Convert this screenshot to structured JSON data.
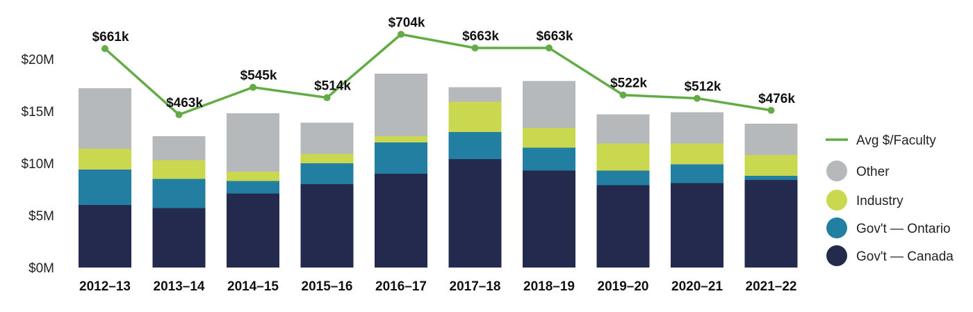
{
  "chart_data": {
    "type": "bar",
    "stacked": true,
    "categories": [
      "2012–13",
      "2013–14",
      "2014–15",
      "2015–16",
      "2016–17",
      "2017–18",
      "2018–19",
      "2019–20",
      "2020–21",
      "2021–22"
    ],
    "ylim": [
      0,
      20
    ],
    "yticks": [
      0,
      5,
      10,
      15,
      20
    ],
    "ytick_labels": [
      "$0M",
      "$5M",
      "$10M",
      "$15M",
      "$20M"
    ],
    "series": [
      {
        "name": "Gov't — Canada",
        "color": "#232a4d",
        "values": [
          6.0,
          5.7,
          7.1,
          8.0,
          9.0,
          10.4,
          9.3,
          7.9,
          8.1,
          8.4
        ]
      },
      {
        "name": "Gov't — Ontario",
        "color": "#237fa1",
        "values": [
          3.4,
          2.8,
          1.2,
          2.0,
          3.0,
          2.6,
          2.2,
          1.4,
          1.8,
          0.4
        ]
      },
      {
        "name": "Industry",
        "color": "#c9d84e",
        "values": [
          2.0,
          1.8,
          0.9,
          0.9,
          0.6,
          2.9,
          1.9,
          2.6,
          2.0,
          2.0
        ]
      },
      {
        "name": "Other",
        "color": "#b6b9bb",
        "values": [
          5.8,
          2.3,
          5.6,
          3.0,
          6.0,
          1.4,
          4.5,
          2.8,
          3.0,
          3.0
        ]
      }
    ],
    "line": {
      "name": "Avg $/Faculty",
      "color": "#62ab45",
      "values": [
        661,
        463,
        545,
        514,
        704,
        663,
        663,
        522,
        512,
        476
      ],
      "labels": [
        "$661k",
        "$463k",
        "$545k",
        "$514k",
        "$704k",
        "$663k",
        "$663k",
        "$522k",
        "$512k",
        "$476k"
      ]
    },
    "legend": {
      "placement": "right",
      "entries": [
        "Avg $/Faculty",
        "Other",
        "Industry",
        "Gov't — Ontario",
        "Gov't — Canada"
      ]
    },
    "grid": false,
    "title": "",
    "xlabel": "",
    "ylabel": ""
  }
}
